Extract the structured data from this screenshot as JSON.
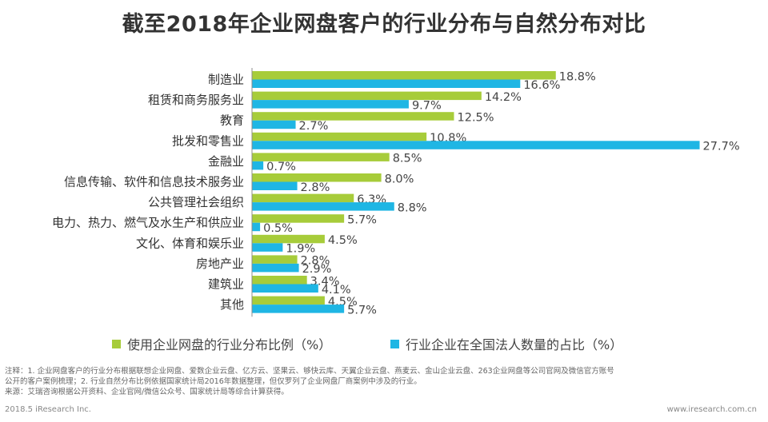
{
  "title": "截至2018年企业网盘客户的行业分布与自然分布对比",
  "colors": {
    "series1": "#a7cc3a",
    "series2": "#1fb6e4",
    "axis": "#8c8c8c"
  },
  "chart_data": {
    "type": "bar",
    "orientation": "horizontal",
    "title": "截至2018年企业网盘客户的行业分布与自然分布对比",
    "categories": [
      "制造业",
      "租赁和商务服务业",
      "教育",
      "批发和零售业",
      "金融业",
      "信息传输、软件和信息技术服务业",
      "公共管理社会组织",
      "电力、热力、燃气及水生产和供应业",
      "文化、体育和娱乐业",
      "房地产业",
      "建筑业",
      "其他"
    ],
    "series": [
      {
        "name": "使用企业网盘的行业分布比例（%）",
        "values": [
          18.8,
          14.2,
          12.5,
          10.8,
          8.5,
          8.0,
          6.3,
          5.7,
          4.5,
          2.8,
          3.4,
          4.5
        ],
        "labels": [
          "18.8%",
          "14.2%",
          "12.5%",
          "10.8%",
          "8.5%",
          "8.0%",
          "6.3%",
          "5.7%",
          "4.5%",
          "2.8%",
          "3.4%",
          "4.5%"
        ]
      },
      {
        "name": "行业企业在全国法人数量的占比（%）",
        "values": [
          16.6,
          9.7,
          2.7,
          27.7,
          0.7,
          2.8,
          8.8,
          0.5,
          1.9,
          2.9,
          4.1,
          5.7
        ],
        "labels": [
          "16.6%",
          "9.7%",
          "2.7%",
          "27.7%",
          "0.7%",
          "2.8%",
          "8.8%",
          "0.5%",
          "1.9%",
          "2.9%",
          "4.1%",
          "5.7%"
        ]
      }
    ],
    "legend_position": "bottom",
    "grid": false
  },
  "notes": {
    "line1": "注释：1. 企业网盘客户的行业分布根据联想企业网盘、爱数企业云盘、亿方云、坚果云、够快云库、天翼企业云盘、燕麦云、金山企业云盘、263企业网盘等公司官网及微信官方账号",
    "line2": "公开的客户案例梳理；2. 行业自然分布比例依据国家统计局2016年数据整理，但仅罗列了企业网盘厂商案例中涉及的行业。",
    "line3": "来源：艾瑞咨询根据公开资料、企业官网/微信公众号、国家统计局等综合计算获得。"
  },
  "footer": {
    "left": "2018.5 iResearch Inc.",
    "right": "www.iresearch.com.cn"
  }
}
